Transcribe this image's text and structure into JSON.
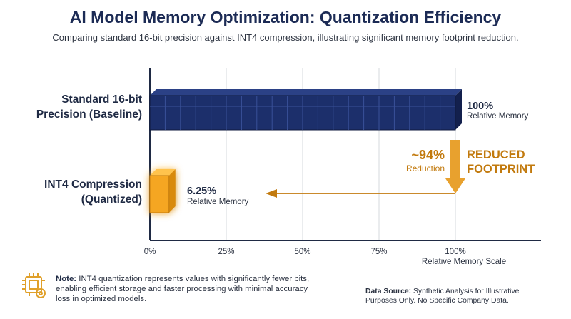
{
  "title": "AI Model Memory Optimization: Quantization Efficiency",
  "subtitle": "Comparing standard 16-bit precision against INT4 compression, illustrating significant memory footprint reduction.",
  "chart_data": {
    "type": "bar",
    "orientation": "horizontal",
    "categories": [
      "Standard 16-bit Precision (Baseline)",
      "INT4 Compression (Quantized)"
    ],
    "category_lines": [
      [
        "Standard 16-bit",
        "Precision (Baseline)"
      ],
      [
        "INT4 Compression",
        "(Quantized)"
      ]
    ],
    "values": [
      100,
      6.25
    ],
    "value_labels": [
      "100%",
      "6.25%"
    ],
    "value_sublabels": [
      "Relative Memory",
      "Relative Memory"
    ],
    "xlabel": "Relative Memory Scale",
    "xlim": [
      0,
      100
    ],
    "xticks": [
      "0%",
      "25%",
      "50%",
      "75%",
      "100%"
    ],
    "grid": true,
    "bar_colors": [
      "#1c2f6b",
      "#f5a623"
    ],
    "annotations": {
      "reduction_value": "~94%",
      "reduction_label": "Reduction",
      "callout_line1": "REDUCED",
      "callout_line2": "FOOTPRINT",
      "accent_color": "#c27a0e"
    }
  },
  "footer": {
    "note_label": "Note:",
    "note_text": "INT4 quantization represents values with significantly fewer bits, enabling efficient storage and faster processing with minimal accuracy loss in optimized models.",
    "source_label": "Data Source:",
    "source_text": "Synthetic Analysis for Illustrative Purposes Only. No Specific Company Data.",
    "icon": "chip-gear-icon"
  }
}
